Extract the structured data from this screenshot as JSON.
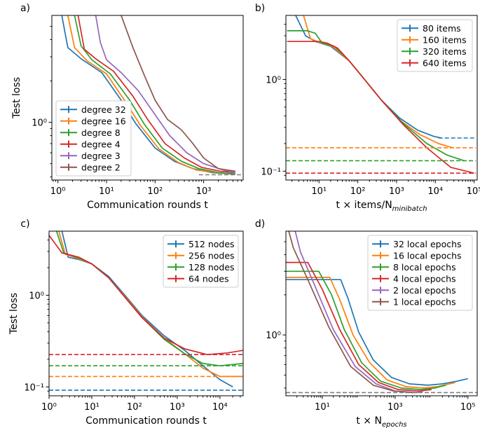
{
  "chart_data": [
    {
      "panel": "a)",
      "type": "line",
      "ylabel": "Test loss",
      "xlabel": "Communication rounds t",
      "xscale": "log",
      "yscale": "log",
      "xlim": [
        0.75,
        6500
      ],
      "ylim": [
        0.38,
        6.0
      ],
      "xticks": [
        {
          "v": 1,
          "label": "10⁰"
        },
        {
          "v": 10,
          "label": "10¹"
        },
        {
          "v": 100,
          "label": "10²"
        },
        {
          "v": 1000,
          "label": "10³"
        }
      ],
      "yticks": [
        {
          "v": 1,
          "label": "10⁰"
        }
      ],
      "legend_loc": "lower-left",
      "series": [
        {
          "name": "degree 32",
          "color": "#1f77b4",
          "x": [
            1.2,
            1.6,
            3,
            8,
            20,
            40,
            100,
            250,
            600,
            1500,
            4500
          ],
          "y": [
            6.0,
            3.5,
            2.9,
            2.3,
            1.45,
            0.98,
            0.65,
            0.52,
            0.46,
            0.43,
            0.42
          ]
        },
        {
          "name": "degree 16",
          "color": "#ff7f0e",
          "x": [
            1.6,
            2.2,
            4,
            10,
            25,
            50,
            120,
            300,
            700,
            1800,
            4500
          ],
          "y": [
            6.0,
            3.5,
            2.8,
            2.25,
            1.4,
            0.95,
            0.64,
            0.51,
            0.45,
            0.43,
            0.42
          ]
        },
        {
          "name": "degree 8",
          "color": "#2ca02c",
          "x": [
            2.2,
            3,
            5,
            12,
            30,
            60,
            140,
            350,
            800,
            2000,
            4500
          ],
          "y": [
            6.0,
            3.6,
            2.85,
            2.25,
            1.45,
            0.97,
            0.65,
            0.52,
            0.46,
            0.43,
            0.42
          ]
        },
        {
          "name": "degree 4",
          "color": "#d62728",
          "x": [
            2.6,
            3.5,
            6,
            14,
            35,
            70,
            160,
            400,
            900,
            2200,
            4500
          ],
          "y": [
            6.0,
            3.4,
            2.9,
            2.35,
            1.55,
            1.05,
            0.7,
            0.55,
            0.47,
            0.44,
            0.43
          ]
        },
        {
          "name": "degree 3",
          "color": "#9467bd",
          "x": [
            6,
            7.5,
            10,
            20,
            45,
            90,
            200,
            450,
            1000,
            2500,
            4500
          ],
          "y": [
            6.0,
            3.8,
            2.85,
            2.3,
            1.7,
            1.2,
            0.8,
            0.6,
            0.5,
            0.45,
            0.43
          ]
        },
        {
          "name": "degree 2",
          "color": "#8c564b",
          "x": [
            20,
            35,
            60,
            100,
            180,
            350,
            600,
            1000,
            2000,
            4500
          ],
          "y": [
            6.0,
            3.5,
            2.2,
            1.45,
            1.05,
            0.88,
            0.7,
            0.55,
            0.46,
            0.44
          ]
        },
        {
          "name": "",
          "color": "#808080",
          "dashed": true,
          "x": [
            800,
            6000
          ],
          "y": [
            0.415,
            0.415
          ]
        }
      ]
    },
    {
      "panel": "b)",
      "type": "line",
      "ylabel": "",
      "xlabel": "t × items/N_minibatch",
      "xscale": "log",
      "yscale": "log",
      "xlim": [
        1.4,
        120000
      ],
      "ylim": [
        0.08,
        5.0
      ],
      "xticks": [
        {
          "v": 10,
          "label": "10¹"
        },
        {
          "v": 100,
          "label": "10²"
        },
        {
          "v": 1000,
          "label": "10³"
        },
        {
          "v": 10000,
          "label": "10⁴"
        },
        {
          "v": 100000,
          "label": "10⁵"
        }
      ],
      "yticks": [
        {
          "v": 0.1,
          "label": "10⁻¹"
        },
        {
          "v": 1,
          "label": "10⁰"
        }
      ],
      "legend_loc": "upper-right",
      "series": [
        {
          "name": "80 items",
          "color": "#1f77b4",
          "x": [
            2.5,
            4.5,
            8,
            20,
            60,
            150,
            400,
            1200,
            3500,
            9000,
            14000
          ],
          "y": [
            5.0,
            3.0,
            2.6,
            2.3,
            1.6,
            1.0,
            0.6,
            0.38,
            0.28,
            0.24,
            0.23
          ]
        },
        {
          "name": "160 items",
          "color": "#ff7f0e",
          "x": [
            4,
            6,
            10,
            22,
            60,
            150,
            400,
            1200,
            4000,
            12000,
            28000
          ],
          "y": [
            5.0,
            2.8,
            2.55,
            2.3,
            1.6,
            1.0,
            0.6,
            0.36,
            0.25,
            0.2,
            0.18
          ]
        },
        {
          "name": "320 items",
          "color": "#2ca02c",
          "x": [
            1.5,
            5,
            8,
            12,
            25,
            60,
            150,
            400,
            1500,
            6000,
            20000,
            55000
          ],
          "y": [
            3.4,
            3.4,
            3.2,
            2.5,
            2.3,
            1.6,
            1.0,
            0.6,
            0.33,
            0.2,
            0.15,
            0.13
          ]
        },
        {
          "name": "640 items",
          "color": "#d62728",
          "x": [
            1.5,
            10,
            16,
            30,
            60,
            150,
            400,
            1500,
            6000,
            25000,
            100000
          ],
          "y": [
            2.6,
            2.6,
            2.5,
            2.2,
            1.6,
            1.0,
            0.6,
            0.32,
            0.18,
            0.11,
            0.095
          ]
        },
        {
          "name": "",
          "color": "#1f77b4",
          "dashed": true,
          "x": [
            12000,
            110000
          ],
          "y": [
            0.23,
            0.23
          ]
        },
        {
          "name": "",
          "color": "#ff7f0e",
          "dashed": true,
          "x": [
            1.4,
            110000
          ],
          "y": [
            0.18,
            0.18
          ]
        },
        {
          "name": "",
          "color": "#2ca02c",
          "dashed": true,
          "x": [
            1.4,
            110000
          ],
          "y": [
            0.13,
            0.13
          ]
        },
        {
          "name": "",
          "color": "#d62728",
          "dashed": true,
          "x": [
            1.4,
            110000
          ],
          "y": [
            0.095,
            0.095
          ]
        }
      ]
    },
    {
      "panel": "c)",
      "type": "line",
      "ylabel": "Test loss",
      "xlabel": "Communication rounds t",
      "xscale": "log",
      "yscale": "log",
      "xlim": [
        1.0,
        35000
      ],
      "ylim": [
        0.08,
        5.0
      ],
      "xticks": [
        {
          "v": 1,
          "label": "10⁰"
        },
        {
          "v": 10,
          "label": "10¹"
        },
        {
          "v": 100,
          "label": "10²"
        },
        {
          "v": 1000,
          "label": "10³"
        },
        {
          "v": 10000,
          "label": "10⁴"
        }
      ],
      "yticks": [
        {
          "v": 0.1,
          "label": "10⁻¹"
        },
        {
          "v": 1,
          "label": "10⁰"
        }
      ],
      "legend_loc": "upper-right",
      "series": [
        {
          "name": "512 nodes",
          "color": "#1f77b4",
          "x": [
            2,
            2.8,
            5,
            10,
            25,
            60,
            150,
            500,
            1500,
            4000,
            10000,
            20000
          ],
          "y": [
            5.0,
            2.6,
            2.45,
            2.2,
            1.6,
            1.0,
            0.6,
            0.36,
            0.25,
            0.17,
            0.12,
            0.1
          ]
        },
        {
          "name": "256 nodes",
          "color": "#ff7f0e",
          "x": [
            1.7,
            2.4,
            5,
            10,
            25,
            60,
            150,
            500,
            1500,
            4000,
            10000,
            35000
          ],
          "y": [
            5.0,
            2.8,
            2.5,
            2.2,
            1.55,
            0.97,
            0.58,
            0.34,
            0.23,
            0.16,
            0.13,
            0.13
          ]
        },
        {
          "name": "128 nodes",
          "color": "#2ca02c",
          "x": [
            1.5,
            2.2,
            5,
            10,
            25,
            60,
            150,
            500,
            1500,
            4000,
            10000,
            35000
          ],
          "y": [
            5.0,
            2.9,
            2.55,
            2.2,
            1.55,
            0.95,
            0.57,
            0.33,
            0.23,
            0.18,
            0.17,
            0.18
          ]
        },
        {
          "name": "64 nodes",
          "color": "#d62728",
          "x": [
            1.0,
            2,
            5,
            10,
            25,
            60,
            150,
            500,
            1500,
            5000,
            15000,
            35000
          ],
          "y": [
            4.5,
            2.9,
            2.6,
            2.2,
            1.55,
            0.95,
            0.57,
            0.34,
            0.26,
            0.225,
            0.235,
            0.25
          ]
        },
        {
          "name": "",
          "color": "#d62728",
          "dashed": true,
          "x": [
            1.0,
            35000
          ],
          "y": [
            0.225,
            0.225
          ]
        },
        {
          "name": "",
          "color": "#2ca02c",
          "dashed": true,
          "x": [
            1.0,
            35000
          ],
          "y": [
            0.17,
            0.17
          ]
        },
        {
          "name": "",
          "color": "#ff7f0e",
          "dashed": true,
          "x": [
            1.0,
            35000
          ],
          "y": [
            0.13,
            0.13
          ]
        },
        {
          "name": "",
          "color": "#1f77b4",
          "dashed": true,
          "x": [
            1.0,
            35000
          ],
          "y": [
            0.092,
            0.092
          ]
        }
      ]
    },
    {
      "panel": "d)",
      "type": "line",
      "ylabel": "",
      "xlabel": "t × N_epochs",
      "xscale": "log",
      "yscale": "log",
      "xlim": [
        1.0,
        180000
      ],
      "ylim": [
        0.35,
        6.0
      ],
      "xticks": [
        {
          "v": 10,
          "label": "10¹"
        },
        {
          "v": 1000,
          "label": "10³"
        },
        {
          "v": 100000,
          "label": "10⁵"
        }
      ],
      "yticks": [
        {
          "v": 1,
          "label": "10⁰"
        }
      ],
      "legend_loc": "upper-right",
      "series": [
        {
          "name": "32 local epochs",
          "color": "#1f77b4",
          "x": [
            1.0,
            32,
            50,
            100,
            250,
            800,
            2500,
            8000,
            20000,
            50000,
            100000
          ],
          "y": [
            2.6,
            2.6,
            1.9,
            1.05,
            0.65,
            0.48,
            0.43,
            0.42,
            0.43,
            0.45,
            0.47
          ]
        },
        {
          "name": "16 local epochs",
          "color": "#ff7f0e",
          "x": [
            1.0,
            16,
            30,
            70,
            200,
            600,
            2000,
            6000,
            15000,
            45000
          ],
          "y": [
            2.7,
            2.7,
            1.85,
            1.0,
            0.62,
            0.46,
            0.41,
            0.4,
            0.41,
            0.44
          ]
        },
        {
          "name": "8 local epochs",
          "color": "#2ca02c",
          "x": [
            1.0,
            8,
            18,
            40,
            120,
            400,
            1500,
            5000,
            12000,
            25000
          ],
          "y": [
            3.0,
            3.0,
            2.0,
            1.1,
            0.62,
            0.45,
            0.4,
            0.39,
            0.4,
            0.42
          ]
        },
        {
          "name": "4 local epochs",
          "color": "#d62728",
          "x": [
            1.0,
            4,
            10,
            30,
            100,
            350,
            1200,
            4500,
            10000
          ],
          "y": [
            3.5,
            3.5,
            2.2,
            1.1,
            0.6,
            0.44,
            0.39,
            0.38,
            0.39
          ]
        },
        {
          "name": "2 local epochs",
          "color": "#9467bd",
          "x": [
            1.8,
            2.5,
            6,
            20,
            80,
            300,
            1000,
            4000,
            6000
          ],
          "y": [
            6.0,
            4.2,
            2.4,
            1.1,
            0.58,
            0.43,
            0.38,
            0.37,
            0.38
          ]
        },
        {
          "name": "1 local epochs",
          "color": "#8c564b",
          "x": [
            1.2,
            1.6,
            4,
            15,
            60,
            250,
            900,
            3000,
            4000
          ],
          "y": [
            6.0,
            4.5,
            2.6,
            1.15,
            0.58,
            0.42,
            0.38,
            0.37,
            0.37
          ]
        },
        {
          "name": "",
          "color": "#808080",
          "dashed": true,
          "x": [
            1.0,
            180000
          ],
          "y": [
            0.37,
            0.37
          ]
        }
      ]
    }
  ]
}
